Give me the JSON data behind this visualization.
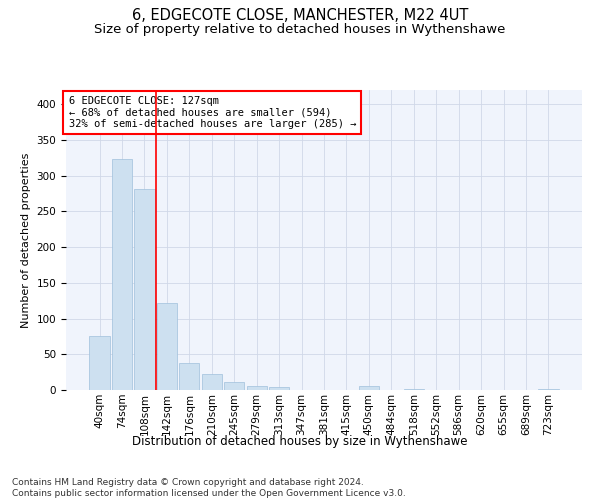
{
  "title": "6, EDGECOTE CLOSE, MANCHESTER, M22 4UT",
  "subtitle": "Size of property relative to detached houses in Wythenshawe",
  "xlabel": "Distribution of detached houses by size in Wythenshawe",
  "ylabel": "Number of detached properties",
  "categories": [
    "40sqm",
    "74sqm",
    "108sqm",
    "142sqm",
    "176sqm",
    "210sqm",
    "245sqm",
    "279sqm",
    "313sqm",
    "347sqm",
    "381sqm",
    "415sqm",
    "450sqm",
    "484sqm",
    "518sqm",
    "552sqm",
    "586sqm",
    "620sqm",
    "655sqm",
    "689sqm",
    "723sqm"
  ],
  "values": [
    75,
    323,
    281,
    122,
    38,
    23,
    11,
    5,
    4,
    0,
    0,
    0,
    5,
    0,
    2,
    0,
    0,
    0,
    0,
    0,
    2
  ],
  "bar_color": "#cde0f0",
  "bar_edge_color": "#a0c0dc",
  "vline_x": 2.5,
  "vline_color": "red",
  "annotation_line1": "6 EDGECOTE CLOSE: 127sqm",
  "annotation_line2": "← 68% of detached houses are smaller (594)",
  "annotation_line3": "32% of semi-detached houses are larger (285) →",
  "annotation_box_color": "white",
  "annotation_box_edge": "red",
  "ylim": [
    0,
    420
  ],
  "yticks": [
    0,
    50,
    100,
    150,
    200,
    250,
    300,
    350,
    400
  ],
  "footnote": "Contains HM Land Registry data © Crown copyright and database right 2024.\nContains public sector information licensed under the Open Government Licence v3.0.",
  "title_fontsize": 10.5,
  "subtitle_fontsize": 9.5,
  "xlabel_fontsize": 8.5,
  "ylabel_fontsize": 8,
  "tick_fontsize": 7.5,
  "annotation_fontsize": 7.5,
  "footnote_fontsize": 6.5,
  "grid_color": "#d0d8e8",
  "background_color": "#f0f4fc"
}
